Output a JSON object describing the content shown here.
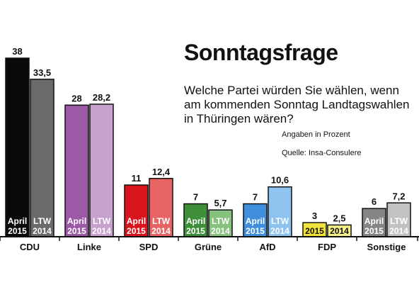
{
  "header": {
    "title": "Sonntagsfrage",
    "subtitle": "Welche Partei würden Sie wählen, wenn am kommenden Sonntag Landtagswahlen in Thüringen wären?",
    "unit_note": "Angaben in Prozent",
    "source": "Quelle: Insa-Consulere"
  },
  "chart_data": {
    "type": "bar",
    "title": "Sonntagsfrage",
    "subtitle": "Welche Partei würden Sie wählen, wenn am kommenden Sonntag Landtagswahlen in Thüringen wären?",
    "xlabel": "",
    "ylabel": "",
    "ylim": [
      0,
      40
    ],
    "grid": false,
    "categories": [
      "CDU",
      "Linke",
      "SPD",
      "Grüne",
      "AfD",
      "FDP",
      "Sonstige"
    ],
    "series": [
      {
        "name": "April 2015",
        "values": [
          38,
          28,
          11,
          7,
          7,
          3,
          6
        ],
        "value_labels": [
          "38",
          "28",
          "11",
          "7",
          "7",
          "3",
          "6"
        ],
        "bar_labels": [
          [
            "April",
            "2015"
          ],
          [
            "April",
            "2015"
          ],
          [
            "April",
            "2015"
          ],
          [
            "April",
            "2015"
          ],
          [
            "April",
            "2015"
          ],
          [
            "2015"
          ],
          [
            "April",
            "2015"
          ]
        ],
        "colors": [
          "#0a0a0a",
          "#9b59a6",
          "#d9141c",
          "#3f8f3a",
          "#3f8fdc",
          "#f2e33a",
          "#858585"
        ]
      },
      {
        "name": "LTW 2014",
        "values": [
          33.5,
          28.2,
          12.4,
          5.7,
          10.6,
          2.5,
          7.2
        ],
        "value_labels": [
          "33,5",
          "28,2",
          "12,4",
          "5,7",
          "10,6",
          "2,5",
          "7,2"
        ],
        "bar_labels": [
          [
            "LTW",
            "2014"
          ],
          [
            "LTW",
            "2014"
          ],
          [
            "LTW",
            "2014"
          ],
          [
            "LTW",
            "2014"
          ],
          [
            "LTW",
            "2014"
          ],
          [
            "2014"
          ],
          [
            "LTW",
            "2014"
          ]
        ],
        "colors": [
          "#6a6a6a",
          "#c8a2cf",
          "#e86464",
          "#86c17e",
          "#8ec2ef",
          "#f7ef8a",
          "#c2c2c2"
        ]
      }
    ]
  }
}
